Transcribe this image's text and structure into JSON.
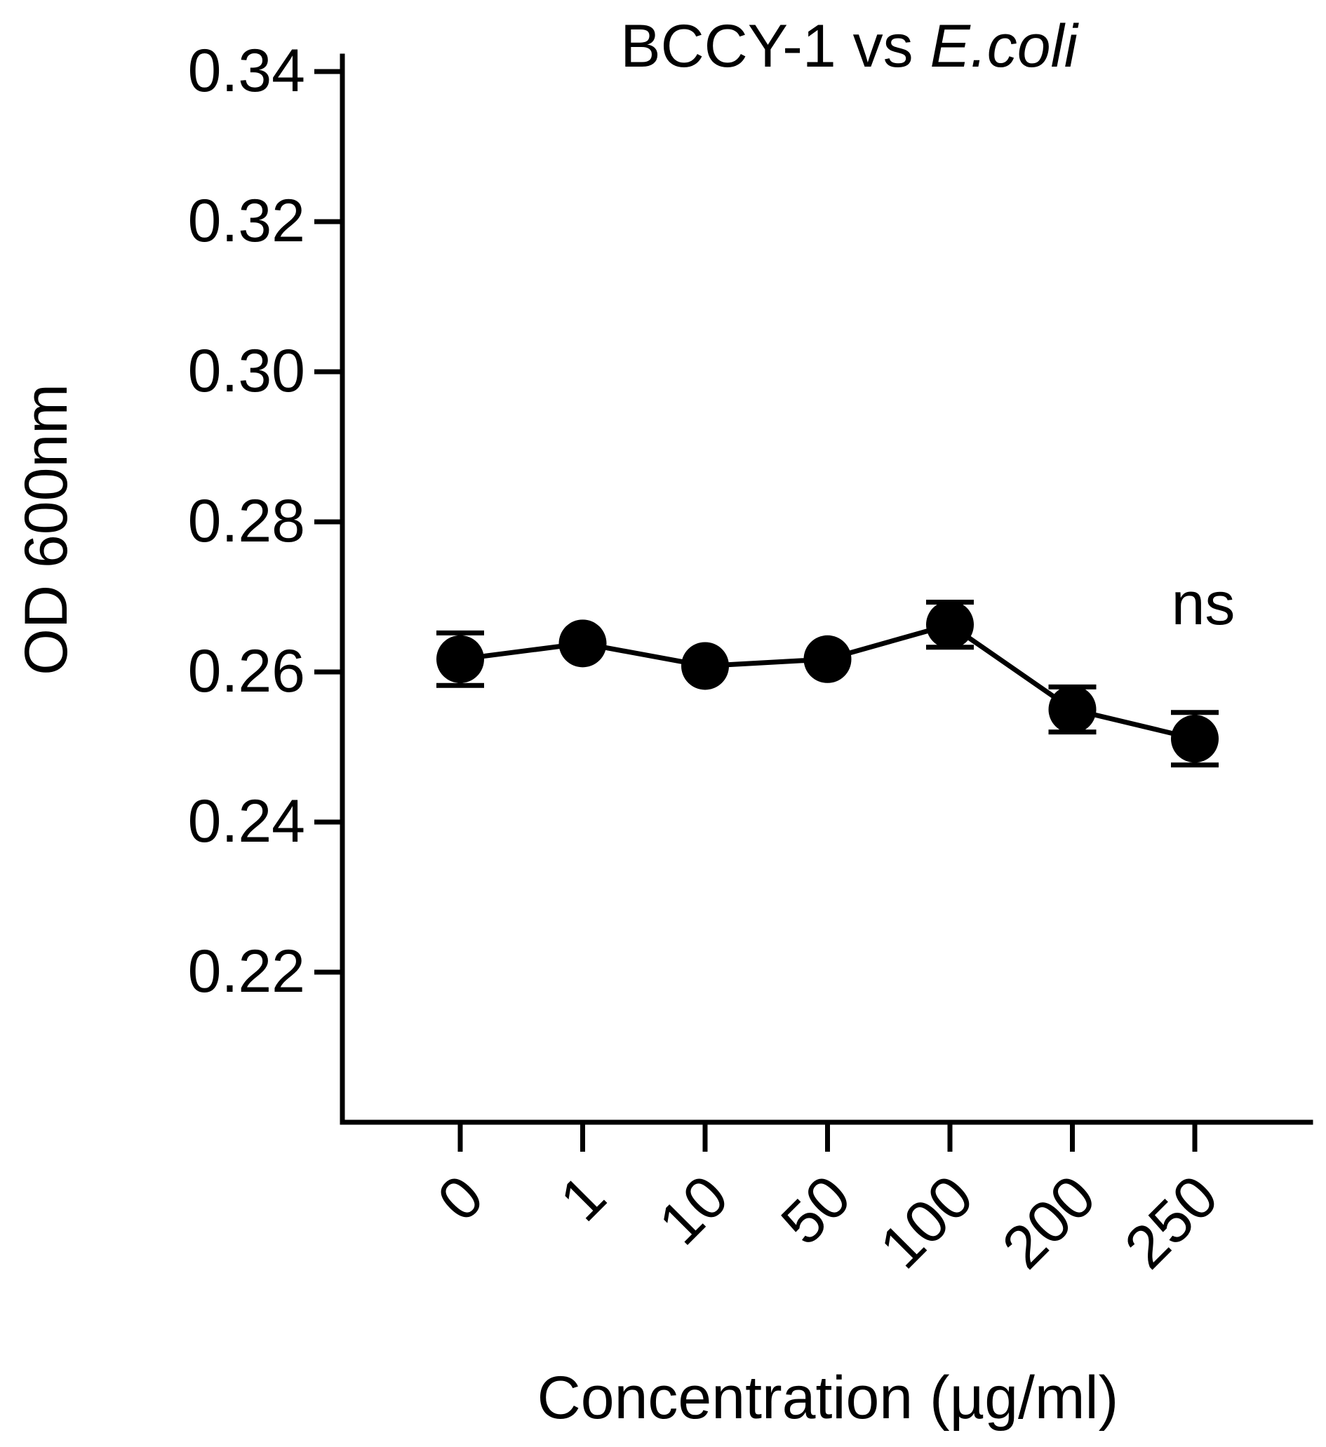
{
  "chart_data": {
    "type": "line",
    "title_prefix": "BCCY-1 vs ",
    "title_italic": "E.coli",
    "xlabel": "Concentration (µg/ml)",
    "ylabel": "OD 600nm",
    "categories": [
      "0",
      "1",
      "10",
      "50",
      "100",
      "200",
      "250"
    ],
    "ylim": [
      0.2,
      0.34
    ],
    "yticks": [
      0.22,
      0.24,
      0.26,
      0.28,
      0.3,
      0.32,
      0.34
    ],
    "ytick_labels": [
      "0.22",
      "0.24",
      "0.26",
      "0.28",
      "0.30",
      "0.32",
      "0.34"
    ],
    "series": [
      {
        "values": [
          0.2617,
          0.2638,
          0.2608,
          0.2617,
          0.2663,
          0.255,
          0.2511
        ],
        "errors": [
          0.0035,
          0.0,
          0.0,
          0.0,
          0.003,
          0.003,
          0.0035
        ]
      }
    ],
    "annotation": "ns",
    "grid": false,
    "colors": {
      "line": "#000000",
      "marker": "#000000"
    }
  }
}
